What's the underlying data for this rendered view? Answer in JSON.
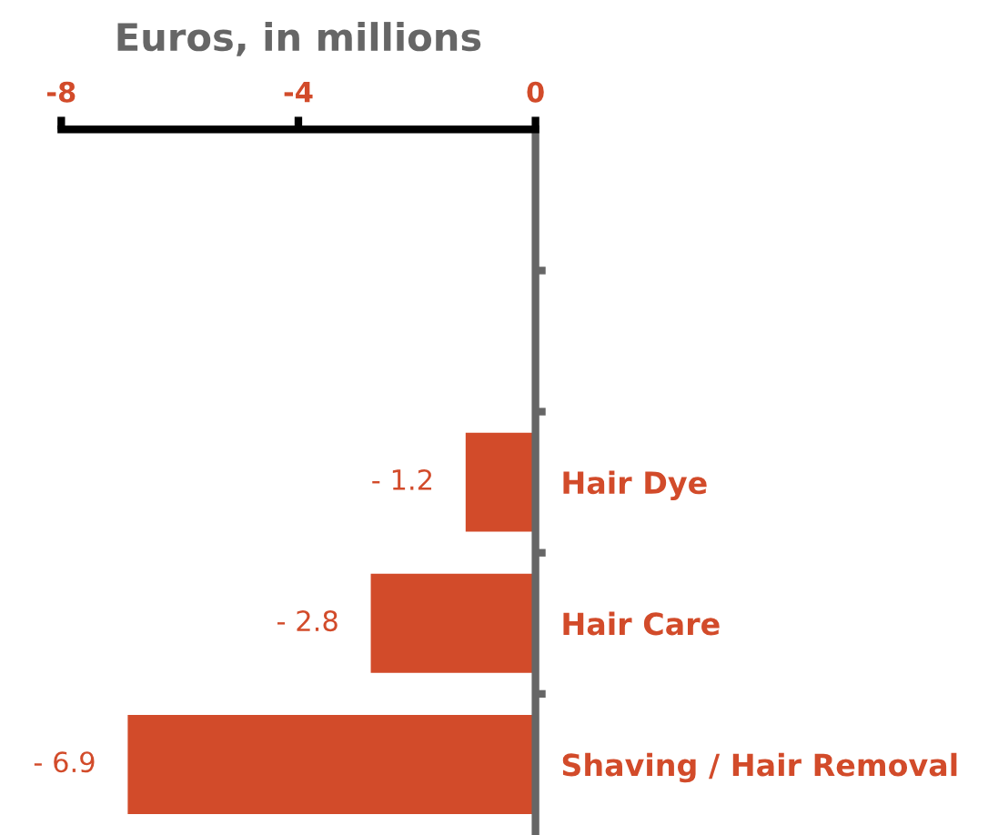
{
  "chart_data": {
    "type": "bar",
    "orientation": "horizontal",
    "xlabel": "Euros, in millions",
    "categories": [
      null,
      null,
      "Hair Dye",
      "Hair Care",
      "Shaving / Hair Removal"
    ],
    "values": [
      null,
      null,
      -1.2,
      -2.8,
      -6.9
    ],
    "value_labels": [
      null,
      null,
      "- 1.2",
      "- 2.8",
      "- 6.9"
    ],
    "color": "#d24b2a",
    "xlim": [
      -8,
      0
    ],
    "xticks": [
      -8,
      -4,
      0
    ],
    "grid": false,
    "legend": false
  }
}
